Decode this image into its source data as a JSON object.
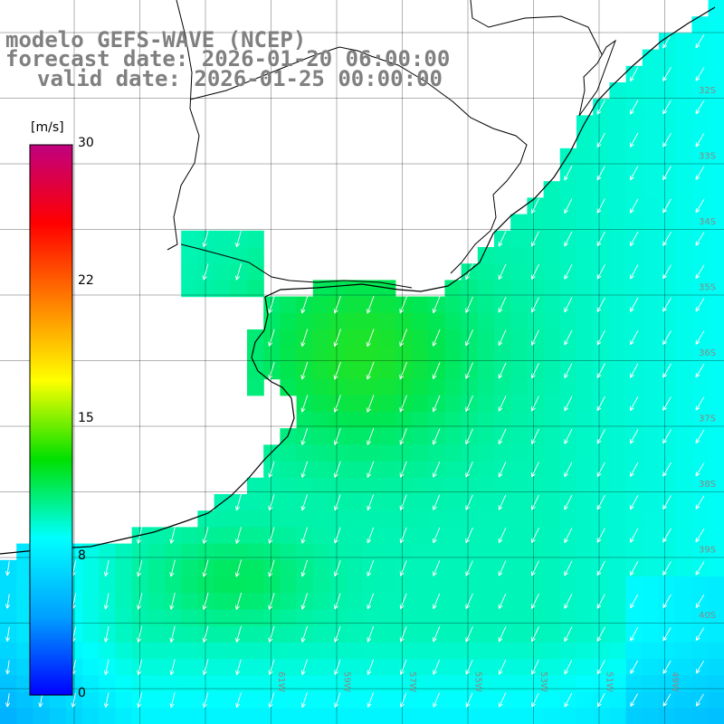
{
  "title": {
    "line1": "modelo GEFS-WAVE (NCEP)",
    "line2": "forecast date: 2026-01-20 06:00:00",
    "line3": "valid date: 2026-01-25 00:00:00"
  },
  "colorbar": {
    "unit": "[m/s]",
    "ticks": [
      "30",
      "22",
      "15",
      "8",
      "0"
    ],
    "tick_values": [
      30,
      22,
      15,
      8,
      0
    ],
    "range": [
      0,
      30
    ],
    "colors": [
      "#0000ff",
      "#00a0ff",
      "#00ffff",
      "#00e000",
      "#ffff00",
      "#ff8000",
      "#ff0000",
      "#c00080"
    ]
  },
  "map": {
    "lat_labels": [
      "32S",
      "33S",
      "34S",
      "35S",
      "36S",
      "37S",
      "38S",
      "39S",
      "40S"
    ],
    "lon_labels": [
      "61W",
      "59W",
      "57W",
      "55W",
      "53W",
      "51W",
      "49W"
    ],
    "wind_direction": "from north-northeast",
    "colors": {
      "land": "#ffffff",
      "coast": "#000000",
      "grid": "#000000",
      "arrows": "#ffffff"
    }
  }
}
